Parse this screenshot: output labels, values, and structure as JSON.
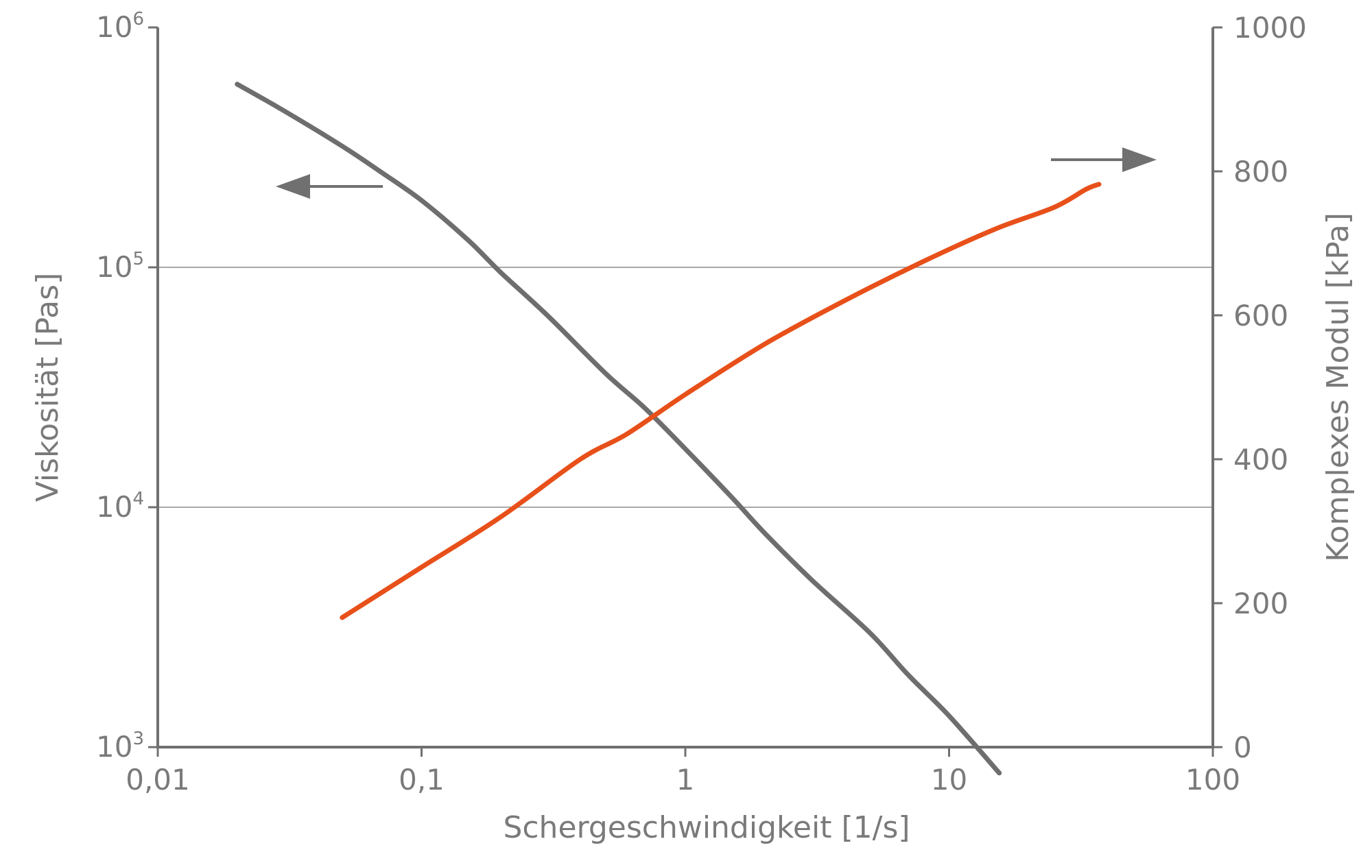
{
  "chart_data": {
    "type": "line",
    "title": "",
    "xlabel": "Schergeschwindigkeit [1/s]",
    "ylabel_left": "Viskosität [Pas]",
    "ylabel_right": "Komplexes Modul [kPa]",
    "x_scale": "log",
    "x_range": [
      0.01,
      100
    ],
    "x_ticks": [
      0.01,
      0.1,
      1,
      10,
      100
    ],
    "x_tick_labels": [
      "0,01",
      "0,1",
      "1",
      "10",
      "100"
    ],
    "y_left_scale": "log",
    "y_left_range": [
      1000,
      1000000
    ],
    "y_left_ticks": [
      {
        "value": 1000,
        "base": "10",
        "exp": "3"
      },
      {
        "value": 10000,
        "base": "10",
        "exp": "4"
      },
      {
        "value": 100000,
        "base": "10",
        "exp": "5"
      },
      {
        "value": 1000000,
        "base": "10",
        "exp": "6"
      }
    ],
    "y_right_scale": "linear",
    "y_right_range": [
      0,
      1000
    ],
    "y_right_ticks": [
      0,
      200,
      400,
      600,
      800,
      1000
    ],
    "y_right_tick_labels": [
      "0",
      "200",
      "400",
      "600",
      "800",
      "1000"
    ],
    "gridlines_y_left": [
      10000,
      100000
    ],
    "series": [
      {
        "axis": "left",
        "color": "#6e6e6e",
        "arrow": "left",
        "x": [
          0.02,
          0.03,
          0.05,
          0.07,
          0.1,
          0.15,
          0.2,
          0.3,
          0.5,
          0.7,
          1,
          1.5,
          2,
          3,
          5,
          7,
          10,
          15.5
        ],
        "y": [
          580000,
          450000,
          320000,
          250000,
          190000,
          130000,
          95000,
          63000,
          36000,
          26000,
          17500,
          11000,
          7800,
          5000,
          3000,
          2000,
          1350,
          780
        ]
      },
      {
        "axis": "right",
        "color": "#e8501a",
        "arrow": "right",
        "x": [
          0.05,
          0.1,
          0.2,
          0.4,
          0.6,
          1,
          2,
          4,
          8,
          15,
          25,
          33,
          37
        ],
        "y": [
          180,
          250,
          320,
          400,
          435,
          490,
          560,
          620,
          675,
          720,
          750,
          775,
          782
        ]
      }
    ]
  }
}
